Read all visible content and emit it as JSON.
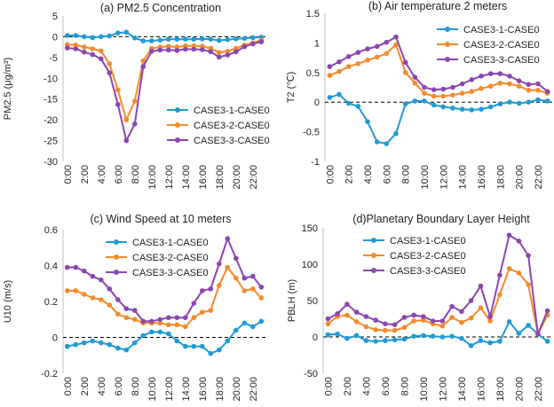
{
  "colors": {
    "case1": "#1f9ad6",
    "case2": "#f58a2a",
    "case3": "#8c45b0",
    "axis": "#bfbfbf",
    "zero": "#000000",
    "text": "#222222"
  },
  "chart_data": [
    {
      "type": "line",
      "title": "(a) PM2.5 Concentration",
      "ylabel": "PM2.5 (μg/m³)",
      "xlabel": "",
      "ylim": [
        -30,
        5
      ],
      "yticks": [
        5,
        0,
        -5,
        -10,
        -15,
        -20,
        -25,
        -30
      ],
      "grid": false,
      "legend": "bottom-right",
      "x": [
        "0:00",
        "1:00",
        "2:00",
        "3:00",
        "4:00",
        "5:00",
        "6:00",
        "7:00",
        "8:00",
        "9:00",
        "10:00",
        "11:00",
        "12:00",
        "13:00",
        "14:00",
        "15:00",
        "16:00",
        "17:00",
        "18:00",
        "19:00",
        "20:00",
        "21:00",
        "22:00",
        "23:00"
      ],
      "xtick_labels": [
        "0:00",
        "2:00",
        "4:00",
        "6:00",
        "8:00",
        "10:00",
        "12:00",
        "14:00",
        "16:00",
        "18:00",
        "20:00",
        "22:00"
      ],
      "series": [
        {
          "name": "CASE3-1-CASE0",
          "color": "#1f9ad6",
          "values": [
            0.3,
            0.3,
            0.0,
            -0.2,
            0.0,
            0.2,
            0.9,
            1.1,
            -0.3,
            -1.0,
            -1.0,
            -0.8,
            -0.6,
            -0.6,
            -0.6,
            -0.6,
            -0.5,
            -0.6,
            -0.9,
            -0.7,
            -0.5,
            -0.4,
            -0.2,
            -0.1
          ]
        },
        {
          "name": "CASE3-2-CASE0",
          "color": "#f58a2a",
          "values": [
            -1.9,
            -2.0,
            -2.5,
            -2.9,
            -3.4,
            -6.5,
            -12.8,
            -20.0,
            -15.5,
            -5.8,
            -2.8,
            -2.5,
            -2.3,
            -2.5,
            -2.2,
            -2.2,
            -2.3,
            -2.8,
            -3.8,
            -3.5,
            -2.8,
            -2.0,
            -1.5,
            -0.8
          ]
        },
        {
          "name": "CASE3-3-CASE0",
          "color": "#8c45b0",
          "values": [
            -2.7,
            -2.9,
            -3.7,
            -4.3,
            -5.3,
            -8.7,
            -16.3,
            -25.0,
            -21.0,
            -7.2,
            -3.5,
            -3.2,
            -3.2,
            -3.3,
            -3.0,
            -3.0,
            -3.1,
            -3.6,
            -4.9,
            -4.4,
            -3.6,
            -2.4,
            -1.7,
            -1.2
          ]
        }
      ]
    },
    {
      "type": "line",
      "title": "(b) Air temperature 2 meters",
      "ylabel": "T2 (℃)",
      "xlabel": "",
      "ylim": [
        -1,
        1.5
      ],
      "yticks": [
        1.5,
        1,
        0.5,
        0,
        -0.5,
        -1
      ],
      "grid": false,
      "legend": "top-right",
      "x": [
        "0:00",
        "1:00",
        "2:00",
        "3:00",
        "4:00",
        "5:00",
        "6:00",
        "7:00",
        "8:00",
        "9:00",
        "10:00",
        "11:00",
        "12:00",
        "13:00",
        "14:00",
        "15:00",
        "16:00",
        "17:00",
        "18:00",
        "19:00",
        "20:00",
        "21:00",
        "22:00",
        "23:00"
      ],
      "xtick_labels": [
        "0:00",
        "2:00",
        "4:00",
        "6:00",
        "8:00",
        "10:00",
        "12:00",
        "14:00",
        "16:00",
        "18:00",
        "20:00",
        "22:00"
      ],
      "series": [
        {
          "name": "CASE3-1-CASE0",
          "color": "#1f9ad6",
          "values": [
            0.08,
            0.13,
            -0.02,
            -0.07,
            -0.33,
            -0.67,
            -0.7,
            -0.53,
            -0.03,
            0.02,
            0.02,
            -0.05,
            -0.08,
            -0.1,
            -0.12,
            -0.13,
            -0.12,
            -0.08,
            -0.03,
            0.0,
            -0.02,
            0.0,
            0.04,
            0.02
          ]
        },
        {
          "name": "CASE3-2-CASE0",
          "color": "#f58a2a",
          "values": [
            0.45,
            0.52,
            0.6,
            0.65,
            0.71,
            0.76,
            0.82,
            0.97,
            0.5,
            0.32,
            0.15,
            0.1,
            0.1,
            0.12,
            0.15,
            0.18,
            0.23,
            0.27,
            0.32,
            0.31,
            0.27,
            0.2,
            0.2,
            0.15
          ]
        },
        {
          "name": "CASE3-3-CASE0",
          "color": "#8c45b0",
          "values": [
            0.6,
            0.68,
            0.77,
            0.84,
            0.9,
            0.94,
            1.01,
            1.1,
            0.67,
            0.42,
            0.25,
            0.21,
            0.22,
            0.25,
            0.31,
            0.38,
            0.44,
            0.48,
            0.48,
            0.44,
            0.36,
            0.3,
            0.31,
            0.18
          ]
        }
      ]
    },
    {
      "type": "line",
      "title": "(c) Wind Speed at 10 meters",
      "ylabel": "U10 (m/s)",
      "xlabel": "",
      "ylim": [
        -0.2,
        0.6
      ],
      "yticks": [
        0.6,
        0.4,
        0.2,
        0,
        -0.2
      ],
      "grid": false,
      "legend": "top-center",
      "x": [
        "0:00",
        "1:00",
        "2:00",
        "3:00",
        "4:00",
        "5:00",
        "6:00",
        "7:00",
        "8:00",
        "9:00",
        "10:00",
        "11:00",
        "12:00",
        "13:00",
        "14:00",
        "15:00",
        "16:00",
        "17:00",
        "18:00",
        "19:00",
        "20:00",
        "21:00",
        "22:00",
        "23:00"
      ],
      "xtick_labels": [
        "0:00",
        "2:00",
        "4:00",
        "6:00",
        "8:00",
        "10:00",
        "12:00",
        "14:00",
        "16:00",
        "18:00",
        "20:00",
        "22:00"
      ],
      "series": [
        {
          "name": "CASE3-1-CASE0",
          "color": "#1f9ad6",
          "values": [
            -0.05,
            -0.04,
            -0.03,
            -0.02,
            -0.03,
            -0.04,
            -0.06,
            -0.07,
            -0.03,
            0.01,
            0.03,
            0.03,
            0.02,
            -0.02,
            -0.05,
            -0.05,
            -0.05,
            -0.09,
            -0.07,
            -0.02,
            0.04,
            0.08,
            0.06,
            0.09
          ]
        },
        {
          "name": "CASE3-2-CASE0",
          "color": "#f58a2a",
          "values": [
            0.26,
            0.26,
            0.24,
            0.22,
            0.21,
            0.18,
            0.13,
            0.11,
            0.1,
            0.08,
            0.08,
            0.08,
            0.07,
            0.07,
            0.06,
            0.11,
            0.14,
            0.15,
            0.29,
            0.39,
            0.33,
            0.26,
            0.27,
            0.22
          ]
        },
        {
          "name": "CASE3-3-CASE0",
          "color": "#8c45b0",
          "values": [
            0.39,
            0.39,
            0.37,
            0.34,
            0.32,
            0.27,
            0.21,
            0.16,
            0.15,
            0.09,
            0.09,
            0.1,
            0.11,
            0.11,
            0.11,
            0.19,
            0.26,
            0.27,
            0.41,
            0.55,
            0.44,
            0.33,
            0.34,
            0.28
          ]
        }
      ]
    },
    {
      "type": "line",
      "title": "(d)Planetary Boundary Layer Height",
      "ylabel": "PBLH (m)",
      "xlabel": "",
      "ylim": [
        -50,
        150
      ],
      "yticks": [
        150,
        100,
        50,
        0,
        -50
      ],
      "grid": false,
      "legend": "top-left",
      "x": [
        "0:00",
        "1:00",
        "2:00",
        "3:00",
        "4:00",
        "5:00",
        "6:00",
        "7:00",
        "8:00",
        "9:00",
        "10:00",
        "11:00",
        "12:00",
        "13:00",
        "14:00",
        "15:00",
        "16:00",
        "17:00",
        "18:00",
        "19:00",
        "20:00",
        "21:00",
        "22:00",
        "23:00"
      ],
      "xtick_labels": [
        "0:00",
        "2:00",
        "4:00",
        "6:00",
        "8:00",
        "10:00",
        "12:00",
        "14:00",
        "16:00",
        "18:00",
        "20:00",
        "22:00"
      ],
      "series": [
        {
          "name": "CASE3-1-CASE0",
          "color": "#1f9ad6",
          "values": [
            3,
            4,
            -2,
            2,
            -5,
            -6,
            -5,
            -4,
            -3,
            1,
            2,
            1,
            0,
            1,
            -2,
            -12,
            -5,
            -8,
            -6,
            21,
            5,
            16,
            4,
            -6
          ]
        },
        {
          "name": "CASE3-2-CASE0",
          "color": "#f58a2a",
          "values": [
            18,
            28,
            30,
            21,
            14,
            10,
            9,
            9,
            13,
            22,
            23,
            18,
            15,
            27,
            20,
            26,
            40,
            22,
            58,
            94,
            88,
            72,
            4,
            30
          ]
        },
        {
          "name": "CASE3-3-CASE0",
          "color": "#8c45b0",
          "values": [
            25,
            32,
            45,
            34,
            28,
            23,
            18,
            17,
            27,
            30,
            28,
            22,
            22,
            42,
            35,
            50,
            70,
            28,
            85,
            140,
            132,
            112,
            4,
            36
          ]
        }
      ]
    }
  ]
}
